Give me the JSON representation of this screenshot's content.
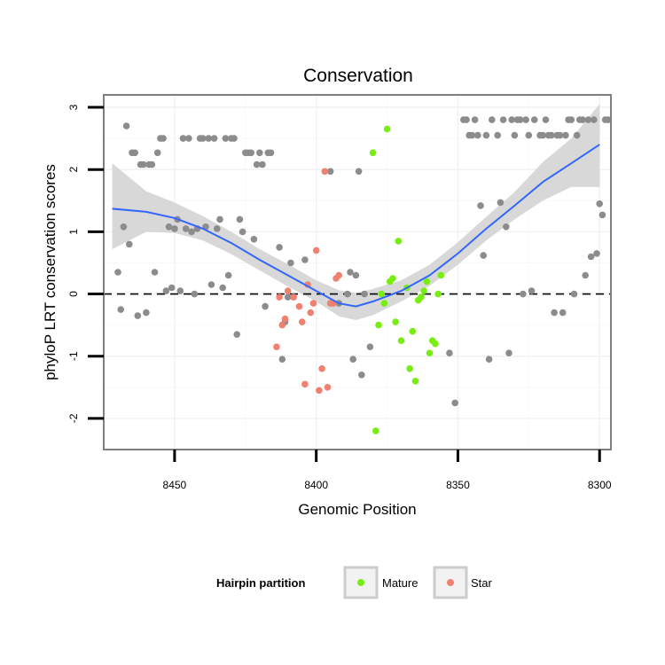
{
  "chart_data": {
    "type": "scatter",
    "title": "Conservation",
    "xlabel": "Genomic Position",
    "ylabel": "phyloP LRT conservation scores",
    "xlim": [
      8475,
      8296
    ],
    "ylim": [
      -2.5,
      3.2
    ],
    "x_reversed": true,
    "xticks": [
      8450,
      8400,
      8350,
      8300
    ],
    "yticks": [
      -2,
      -1,
      0,
      1,
      2,
      3
    ],
    "reference_line": {
      "y": 0,
      "style": "dashed"
    },
    "legend": {
      "title": "Hairpin partition",
      "placement": "bottom",
      "entries": [
        {
          "label": "Mature",
          "color": "#77ee11"
        },
        {
          "label": "Star",
          "color": "#f08070"
        }
      ]
    },
    "colors": {
      "other": "#8c8c8c",
      "smooth": "#3366ff",
      "band": "#d4d4d4"
    },
    "series": [
      {
        "name": "Other",
        "points": [
          [
            8470,
            0.35
          ],
          [
            8469,
            -0.25
          ],
          [
            8468,
            1.08
          ],
          [
            8467,
            2.7
          ],
          [
            8466,
            0.8
          ],
          [
            8465,
            2.27
          ],
          [
            8464,
            2.27
          ],
          [
            8463,
            -0.35
          ],
          [
            8462,
            2.08
          ],
          [
            8461,
            2.08
          ],
          [
            8460,
            -0.3
          ],
          [
            8459,
            2.08
          ],
          [
            8458,
            2.08
          ],
          [
            8457,
            0.35
          ],
          [
            8456,
            2.27
          ],
          [
            8455,
            2.5
          ],
          [
            8454,
            2.5
          ],
          [
            8453,
            0.05
          ],
          [
            8452,
            1.08
          ],
          [
            8451,
            0.1
          ],
          [
            8450,
            1.05
          ],
          [
            8449,
            1.2
          ],
          [
            8448,
            0.05
          ],
          [
            8447,
            2.5
          ],
          [
            8446,
            1.05
          ],
          [
            8445,
            2.5
          ],
          [
            8444,
            1.0
          ],
          [
            8443,
            0.0
          ],
          [
            8442,
            1.05
          ],
          [
            8441,
            2.5
          ],
          [
            8440,
            2.5
          ],
          [
            8439,
            1.08
          ],
          [
            8438,
            2.5
          ],
          [
            8437,
            0.15
          ],
          [
            8436,
            2.5
          ],
          [
            8435,
            1.05
          ],
          [
            8434,
            1.2
          ],
          [
            8433,
            0.1
          ],
          [
            8432,
            2.5
          ],
          [
            8431,
            0.3
          ],
          [
            8430,
            2.5
          ],
          [
            8429,
            2.5
          ],
          [
            8428,
            -0.65
          ],
          [
            8427,
            1.2
          ],
          [
            8426,
            1.0
          ],
          [
            8425,
            2.27
          ],
          [
            8424,
            2.27
          ],
          [
            8423,
            2.27
          ],
          [
            8422,
            0.88
          ],
          [
            8421,
            2.08
          ],
          [
            8420,
            2.27
          ],
          [
            8419,
            2.08
          ],
          [
            8418,
            -0.2
          ],
          [
            8417,
            2.27
          ],
          [
            8416,
            2.27
          ],
          [
            8413,
            0.75
          ],
          [
            8412,
            -1.05
          ],
          [
            8411,
            -0.45
          ],
          [
            8410,
            -0.05
          ],
          [
            8409,
            0.5
          ],
          [
            8408,
            -0.05
          ],
          [
            8404,
            0.55
          ],
          [
            8395,
            1.97
          ],
          [
            8392,
            -0.15
          ],
          [
            8389,
            0.0
          ],
          [
            8388,
            0.35
          ],
          [
            8387,
            -1.05
          ],
          [
            8386,
            0.3
          ],
          [
            8385,
            1.97
          ],
          [
            8384,
            -1.3
          ],
          [
            8383,
            0.0
          ],
          [
            8381,
            -0.85
          ],
          [
            8353,
            -0.95
          ],
          [
            8351,
            -1.75
          ],
          [
            8348,
            2.8
          ],
          [
            8347,
            2.8
          ],
          [
            8346,
            2.55
          ],
          [
            8345,
            2.55
          ],
          [
            8344,
            2.8
          ],
          [
            8343,
            2.55
          ],
          [
            8342,
            1.42
          ],
          [
            8341,
            0.62
          ],
          [
            8340,
            2.55
          ],
          [
            8339,
            -1.05
          ],
          [
            8338,
            2.8
          ],
          [
            8336,
            2.55
          ],
          [
            8335,
            1.47
          ],
          [
            8334,
            2.8
          ],
          [
            8333,
            1.08
          ],
          [
            8332,
            -0.95
          ],
          [
            8331,
            2.8
          ],
          [
            8330,
            2.55
          ],
          [
            8329,
            2.8
          ],
          [
            8328,
            2.8
          ],
          [
            8327,
            0.0
          ],
          [
            8326,
            2.8
          ],
          [
            8325,
            2.55
          ],
          [
            8324,
            0.05
          ],
          [
            8323,
            2.8
          ],
          [
            8321,
            2.55
          ],
          [
            8320,
            2.55
          ],
          [
            8319,
            2.8
          ],
          [
            8318,
            2.55
          ],
          [
            8317,
            2.55
          ],
          [
            8316,
            -0.3
          ],
          [
            8315,
            2.55
          ],
          [
            8314,
            2.55
          ],
          [
            8313,
            -0.3
          ],
          [
            8312,
            2.55
          ],
          [
            8311,
            2.8
          ],
          [
            8310,
            2.8
          ],
          [
            8309,
            0.0
          ],
          [
            8308,
            2.55
          ],
          [
            8307,
            2.8
          ],
          [
            8306,
            2.8
          ],
          [
            8305,
            0.3
          ],
          [
            8304,
            2.8
          ],
          [
            8303,
            0.6
          ],
          [
            8302,
            2.8
          ],
          [
            8301,
            0.65
          ],
          [
            8300,
            1.45
          ],
          [
            8299,
            1.27
          ],
          [
            8298,
            2.8
          ],
          [
            8297,
            2.8
          ]
        ]
      },
      {
        "name": "Mature",
        "points": [
          [
            8380,
            2.27
          ],
          [
            8379,
            -2.2
          ],
          [
            8378,
            -0.5
          ],
          [
            8377,
            0.0
          ],
          [
            8376,
            -0.15
          ],
          [
            8375,
            2.65
          ],
          [
            8374,
            0.2
          ],
          [
            8373,
            0.25
          ],
          [
            8372,
            -0.45
          ],
          [
            8371,
            0.85
          ],
          [
            8370,
            -0.75
          ],
          [
            8368,
            0.1
          ],
          [
            8367,
            -1.2
          ],
          [
            8366,
            -0.6
          ],
          [
            8365,
            -1.4
          ],
          [
            8364,
            -0.1
          ],
          [
            8363,
            -0.05
          ],
          [
            8362,
            0.05
          ],
          [
            8361,
            0.2
          ],
          [
            8360,
            -0.95
          ],
          [
            8359,
            -0.75
          ],
          [
            8358,
            -0.8
          ],
          [
            8357,
            0.0
          ],
          [
            8356,
            0.3
          ]
        ]
      },
      {
        "name": "Star",
        "points": [
          [
            8414,
            -0.85
          ],
          [
            8413,
            -0.05
          ],
          [
            8412,
            -0.5
          ],
          [
            8411,
            -0.4
          ],
          [
            8410,
            0.05
          ],
          [
            8408,
            -0.05
          ],
          [
            8406,
            -0.2
          ],
          [
            8405,
            -0.45
          ],
          [
            8404,
            -1.45
          ],
          [
            8403,
            0.15
          ],
          [
            8402,
            -0.3
          ],
          [
            8401,
            -0.15
          ],
          [
            8400,
            0.7
          ],
          [
            8399,
            -1.55
          ],
          [
            8398,
            -1.2
          ],
          [
            8397,
            1.97
          ],
          [
            8396,
            -1.5
          ],
          [
            8395,
            -0.15
          ],
          [
            8394,
            -0.15
          ],
          [
            8393,
            0.25
          ],
          [
            8392,
            0.3
          ]
        ]
      }
    ],
    "smooth": {
      "x": [
        8472,
        8460,
        8450,
        8440,
        8430,
        8420,
        8410,
        8400,
        8392,
        8386,
        8380,
        8370,
        8360,
        8350,
        8340,
        8330,
        8320,
        8310,
        8300
      ],
      "y": [
        1.37,
        1.32,
        1.22,
        1.05,
        0.82,
        0.55,
        0.3,
        0.05,
        -0.15,
        -0.2,
        -0.12,
        0.05,
        0.3,
        0.65,
        1.05,
        1.42,
        1.8,
        2.1,
        2.4
      ],
      "lower": [
        0.72,
        1.0,
        0.98,
        0.86,
        0.64,
        0.38,
        0.12,
        -0.12,
        -0.36,
        -0.42,
        -0.34,
        -0.12,
        0.13,
        0.47,
        0.86,
        1.2,
        1.5,
        1.72,
        1.72
      ],
      "upper": [
        2.1,
        1.65,
        1.47,
        1.25,
        1.0,
        0.72,
        0.48,
        0.22,
        0.06,
        0.02,
        0.08,
        0.22,
        0.47,
        0.83,
        1.24,
        1.64,
        2.12,
        2.5,
        3.05
      ]
    }
  }
}
